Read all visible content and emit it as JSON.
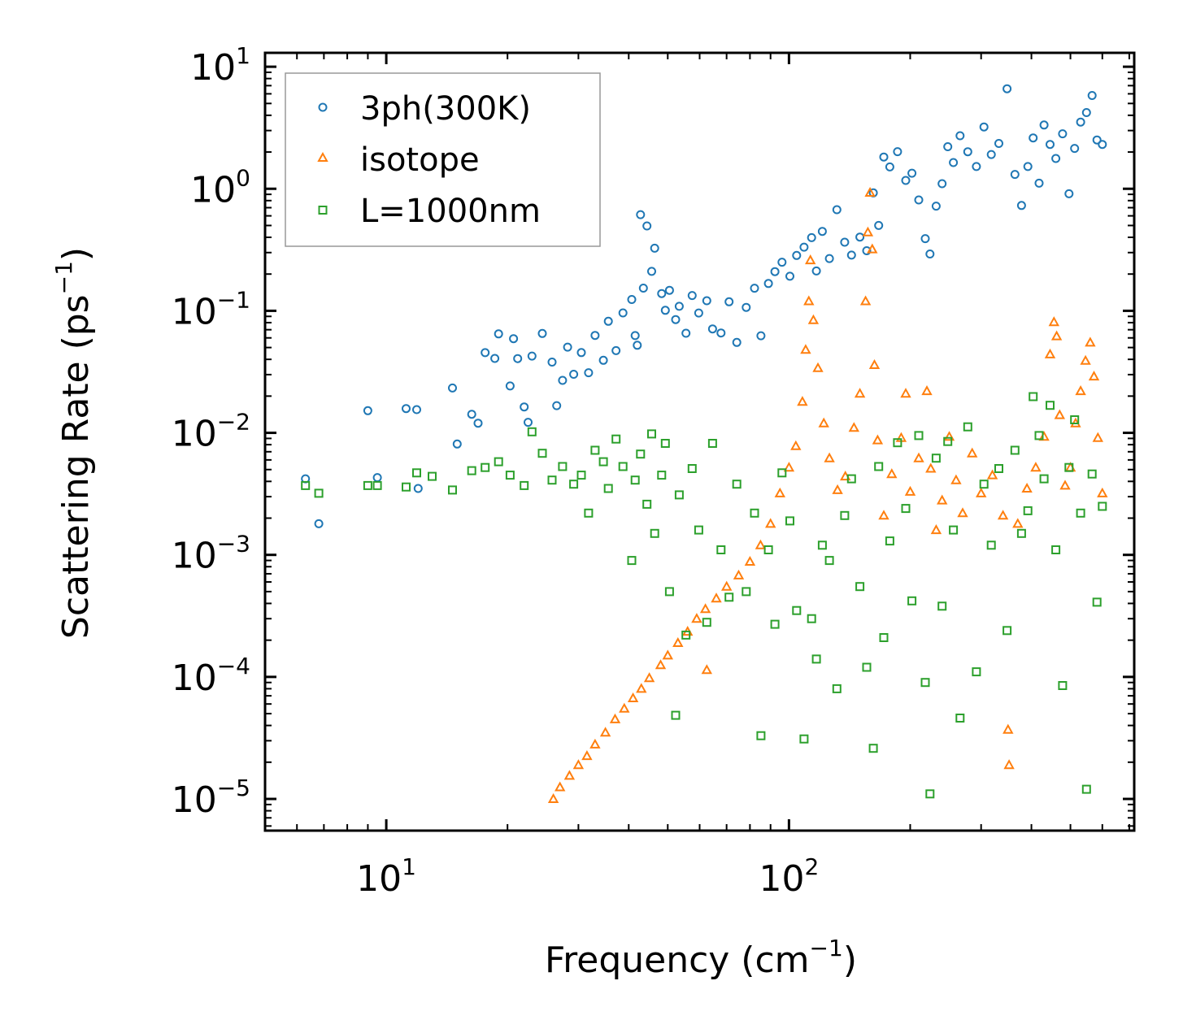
{
  "chart_data": {
    "type": "scatter",
    "xscale": "log",
    "yscale": "log",
    "xlim": [
      5,
      720
    ],
    "ylim": [
      5.5e-06,
      13
    ],
    "xlabel": "Frequency (cm",
    "xlabel_sup": "−1",
    "xlabel_end": ")",
    "ylabel": "Scattering Rate (ps",
    "ylabel_sup": "−1",
    "ylabel_end": ")",
    "x_ticks": [
      {
        "value": 10,
        "base": "10",
        "exp": "1"
      },
      {
        "value": 100,
        "base": "10",
        "exp": "2"
      }
    ],
    "y_ticks": [
      {
        "value": 10,
        "base": "10",
        "exp": "1"
      },
      {
        "value": 1,
        "base": "10",
        "exp": "0"
      },
      {
        "value": 0.1,
        "base": "10",
        "exp": "−1"
      },
      {
        "value": 0.01,
        "base": "10",
        "exp": "−2"
      },
      {
        "value": 0.001,
        "base": "10",
        "exp": "−3"
      },
      {
        "value": 0.0001,
        "base": "10",
        "exp": "−4"
      },
      {
        "value": 1e-05,
        "base": "10",
        "exp": "−5"
      }
    ],
    "legend_position": "top-left",
    "series": [
      {
        "name": "3ph(300K)",
        "marker": "circle",
        "color": "#1f77b4",
        "points": [
          [
            6.3,
            0.0042
          ],
          [
            6.8,
            0.0018
          ],
          [
            9.0,
            0.0152
          ],
          [
            9.5,
            0.0043
          ],
          [
            11.2,
            0.0158
          ],
          [
            11.9,
            0.0155
          ],
          [
            12.0,
            0.0035
          ],
          [
            14.6,
            0.0233
          ],
          [
            15.0,
            0.0081
          ],
          [
            16.3,
            0.0142
          ],
          [
            16.9,
            0.012
          ],
          [
            17.6,
            0.0454
          ],
          [
            18.6,
            0.0407
          ],
          [
            19.0,
            0.0647
          ],
          [
            20.3,
            0.0242
          ],
          [
            20.7,
            0.0591
          ],
          [
            21.2,
            0.0406
          ],
          [
            22.0,
            0.0163
          ],
          [
            22.5,
            0.0122
          ],
          [
            23.0,
            0.0426
          ],
          [
            24.4,
            0.0652
          ],
          [
            25.8,
            0.038
          ],
          [
            26.5,
            0.0167
          ],
          [
            27.4,
            0.0269
          ],
          [
            28.2,
            0.0504
          ],
          [
            29.2,
            0.0302
          ],
          [
            30.5,
            0.0455
          ],
          [
            31.8,
            0.0311
          ],
          [
            33.0,
            0.0628
          ],
          [
            34.6,
            0.0393
          ],
          [
            35.6,
            0.0821
          ],
          [
            37.2,
            0.0472
          ],
          [
            38.7,
            0.0961
          ],
          [
            40.7,
            0.1238
          ],
          [
            41.5,
            0.0627
          ],
          [
            42.0,
            0.0522
          ],
          [
            42.8,
            0.6135
          ],
          [
            43.5,
            0.1534
          ],
          [
            44.4,
            0.4962
          ],
          [
            45.6,
            0.2105
          ],
          [
            46.4,
            0.3259
          ],
          [
            48.3,
            0.1384
          ],
          [
            49.3,
            0.101
          ],
          [
            50.5,
            0.1472
          ],
          [
            52.3,
            0.0848
          ],
          [
            53.4,
            0.1089
          ],
          [
            55.5,
            0.0655
          ],
          [
            57.5,
            0.1334
          ],
          [
            59.7,
            0.096
          ],
          [
            62.5,
            0.1209
          ],
          [
            64.6,
            0.0711
          ],
          [
            67.8,
            0.0658
          ],
          [
            71.0,
            0.1185
          ],
          [
            74.2,
            0.0551
          ],
          [
            78.3,
            0.1067
          ],
          [
            82.1,
            0.1532
          ],
          [
            85.2,
            0.0625
          ],
          [
            88.9,
            0.1675
          ],
          [
            92.3,
            0.2093
          ],
          [
            96.1,
            0.2502
          ],
          [
            100.5,
            0.1918
          ],
          [
            104.5,
            0.2843
          ],
          [
            109.0,
            0.3321
          ],
          [
            113.8,
            0.3978
          ],
          [
            117.0,
            0.2121
          ],
          [
            121.0,
            0.4475
          ],
          [
            126.0,
            0.2683
          ],
          [
            131.5,
            0.6735
          ],
          [
            137.5,
            0.3651
          ],
          [
            143.0,
            0.2861
          ],
          [
            150.0,
            0.4018
          ],
          [
            156.0,
            0.3108
          ],
          [
            162.0,
            0.9254
          ],
          [
            167.0,
            0.5002
          ],
          [
            172.0,
            1.8211
          ],
          [
            178.0,
            1.5101
          ],
          [
            186.0,
            2.0131
          ],
          [
            195.0,
            1.1702
          ],
          [
            202.0,
            1.3413
          ],
          [
            210.0,
            0.8105
          ],
          [
            218.0,
            0.3904
          ],
          [
            224.0,
            0.2922
          ],
          [
            232.0,
            0.7213
          ],
          [
            240.0,
            1.1004
          ],
          [
            248.0,
            2.2112
          ],
          [
            256.0,
            1.6403
          ],
          [
            266.0,
            2.7205
          ],
          [
            278.0,
            2.0103
          ],
          [
            292.0,
            1.5202
          ],
          [
            305.0,
            3.2101
          ],
          [
            318.0,
            1.9103
          ],
          [
            332.0,
            2.3511
          ],
          [
            348.0,
            6.6002
          ],
          [
            364.0,
            1.3101
          ],
          [
            378.0,
            0.7301
          ],
          [
            392.0,
            1.5203
          ],
          [
            404.0,
            2.6101
          ],
          [
            418.0,
            1.1103
          ],
          [
            430.0,
            3.3302
          ],
          [
            445.0,
            2.3104
          ],
          [
            460.0,
            1.7701
          ],
          [
            478.0,
            2.8203
          ],
          [
            496.0,
            0.9101
          ],
          [
            512.0,
            2.1401
          ],
          [
            530.0,
            3.5202
          ],
          [
            548.0,
            4.2105
          ],
          [
            566.0,
            5.8101
          ],
          [
            582.0,
            2.5104
          ],
          [
            600.0,
            2.3101
          ]
        ]
      },
      {
        "name": "isotope",
        "marker": "triangle",
        "color": "#ff7f0e",
        "points": [
          [
            26.0,
            1e-05
          ],
          [
            27.0,
            1.25e-05
          ],
          [
            28.5,
            1.55e-05
          ],
          [
            30.0,
            1.9e-05
          ],
          [
            31.5,
            2.25e-05
          ],
          [
            33.0,
            2.8e-05
          ],
          [
            35.0,
            3.5e-05
          ],
          [
            37.0,
            4.5e-05
          ],
          [
            39.0,
            5.5e-05
          ],
          [
            41.0,
            6.7e-05
          ],
          [
            43.0,
            8e-05
          ],
          [
            45.0,
            9.8e-05
          ],
          [
            48.0,
            0.000125
          ],
          [
            50.0,
            0.00015
          ],
          [
            53.0,
            0.00019
          ],
          [
            56.0,
            0.000235
          ],
          [
            59.0,
            0.0003
          ],
          [
            62.0,
            0.00036
          ],
          [
            62.5,
            0.000114
          ],
          [
            66.0,
            0.00044
          ],
          [
            70.0,
            0.00055
          ],
          [
            75.0,
            0.00068
          ],
          [
            80.0,
            0.00088
          ],
          [
            85.0,
            0.0012
          ],
          [
            90.0,
            0.0018
          ],
          [
            95.0,
            0.0032
          ],
          [
            100.0,
            0.0052
          ],
          [
            104.0,
            0.0078
          ],
          [
            108.0,
            0.018
          ],
          [
            110.0,
            0.048
          ],
          [
            112.0,
            0.12
          ],
          [
            113.0,
            0.26
          ],
          [
            115.0,
            0.084
          ],
          [
            118.0,
            0.034
          ],
          [
            122.0,
            0.012
          ],
          [
            126.0,
            0.0062
          ],
          [
            132.0,
            0.0034
          ],
          [
            138.0,
            0.0044
          ],
          [
            145.0,
            0.011
          ],
          [
            150.0,
            0.021
          ],
          [
            155.0,
            0.12
          ],
          [
            157.0,
            0.44
          ],
          [
            159.0,
            0.93
          ],
          [
            161.0,
            0.32
          ],
          [
            163.0,
            0.036
          ],
          [
            166.0,
            0.0087
          ],
          [
            172.0,
            0.0021
          ],
          [
            180.0,
            0.0046
          ],
          [
            190.0,
            0.0091
          ],
          [
            195.0,
            0.021
          ],
          [
            200.0,
            0.0033
          ],
          [
            210.0,
            0.0062
          ],
          [
            220.0,
            0.022
          ],
          [
            225.0,
            0.0051
          ],
          [
            232.0,
            0.0016
          ],
          [
            240.0,
            0.0028
          ],
          [
            250.0,
            0.0093
          ],
          [
            260.0,
            0.0041
          ],
          [
            270.0,
            0.0022
          ],
          [
            285.0,
            0.0068
          ],
          [
            300.0,
            0.0032
          ],
          [
            320.0,
            0.0045
          ],
          [
            340.0,
            0.0021
          ],
          [
            350.0,
            3.7e-05
          ],
          [
            352.0,
            1.9e-05
          ],
          [
            370.0,
            0.0018
          ],
          [
            390.0,
            0.0035
          ],
          [
            410.0,
            0.0052
          ],
          [
            430.0,
            0.0093
          ],
          [
            445.0,
            0.044
          ],
          [
            455.0,
            0.081
          ],
          [
            462.0,
            0.062
          ],
          [
            470.0,
            0.014
          ],
          [
            485.0,
            0.0037
          ],
          [
            500.0,
            0.0052
          ],
          [
            515.0,
            0.012
          ],
          [
            530.0,
            0.022
          ],
          [
            545.0,
            0.039
          ],
          [
            560.0,
            0.055
          ],
          [
            572.0,
            0.029
          ],
          [
            585.0,
            0.0091
          ],
          [
            600.0,
            0.0032
          ]
        ]
      },
      {
        "name": "L=1000nm",
        "marker": "square",
        "color": "#2ca02c",
        "points": [
          [
            6.3,
            0.0037
          ],
          [
            6.8,
            0.0032
          ],
          [
            9.0,
            0.0037
          ],
          [
            9.5,
            0.0037
          ],
          [
            11.2,
            0.0036
          ],
          [
            11.9,
            0.0047
          ],
          [
            13.0,
            0.0044
          ],
          [
            14.6,
            0.0034
          ],
          [
            16.3,
            0.0049
          ],
          [
            17.6,
            0.0052
          ],
          [
            19.0,
            0.0058
          ],
          [
            20.3,
            0.0045
          ],
          [
            22.0,
            0.0037
          ],
          [
            23.0,
            0.0102
          ],
          [
            24.4,
            0.0068
          ],
          [
            25.8,
            0.0041
          ],
          [
            27.4,
            0.0053
          ],
          [
            29.2,
            0.0038
          ],
          [
            30.5,
            0.0045
          ],
          [
            31.8,
            0.0022
          ],
          [
            33.0,
            0.0072
          ],
          [
            34.6,
            0.0058
          ],
          [
            35.6,
            0.0035
          ],
          [
            37.2,
            0.0089
          ],
          [
            38.7,
            0.0053
          ],
          [
            40.7,
            0.0009
          ],
          [
            41.5,
            0.0041
          ],
          [
            42.8,
            0.0067
          ],
          [
            44.4,
            0.0026
          ],
          [
            45.6,
            0.0098
          ],
          [
            46.4,
            0.0015
          ],
          [
            48.3,
            0.0045
          ],
          [
            49.3,
            0.0082
          ],
          [
            50.5,
            0.0005
          ],
          [
            52.3,
            4.85e-05
          ],
          [
            53.4,
            0.0031
          ],
          [
            55.5,
            0.00022
          ],
          [
            57.5,
            0.0051
          ],
          [
            59.7,
            0.0016
          ],
          [
            62.5,
            0.00028
          ],
          [
            64.6,
            0.0082
          ],
          [
            67.8,
            0.0011
          ],
          [
            71.0,
            0.00045
          ],
          [
            74.2,
            0.0038
          ],
          [
            78.3,
            0.0005
          ],
          [
            82.1,
            0.0022
          ],
          [
            85.2,
            3.3e-05
          ],
          [
            88.9,
            0.0011
          ],
          [
            92.3,
            0.00027
          ],
          [
            96.1,
            0.0047
          ],
          [
            100.5,
            0.0019
          ],
          [
            104.5,
            0.00035
          ],
          [
            109.0,
            3.1e-05
          ],
          [
            113.8,
            0.0003
          ],
          [
            117.0,
            0.00014
          ],
          [
            121.0,
            0.0012
          ],
          [
            126.0,
            0.0009
          ],
          [
            131.5,
            8e-05
          ],
          [
            137.5,
            0.0021
          ],
          [
            143.0,
            0.0042
          ],
          [
            150.0,
            0.00055
          ],
          [
            156.0,
            0.00012
          ],
          [
            162.0,
            2.6e-05
          ],
          [
            167.0,
            0.0053
          ],
          [
            172.0,
            0.00021
          ],
          [
            178.0,
            0.0013
          ],
          [
            186.0,
            0.0083
          ],
          [
            195.0,
            0.0024
          ],
          [
            202.0,
            0.00042
          ],
          [
            210.0,
            0.0095
          ],
          [
            218.0,
            9e-05
          ],
          [
            224.0,
            1.1e-05
          ],
          [
            232.0,
            0.0062
          ],
          [
            240.0,
            0.00038
          ],
          [
            248.0,
            0.0085
          ],
          [
            256.0,
            0.0016
          ],
          [
            266.0,
            4.6e-05
          ],
          [
            278.0,
            0.0112
          ],
          [
            292.0,
            0.00011
          ],
          [
            305.0,
            0.0038
          ],
          [
            318.0,
            0.0012
          ],
          [
            332.0,
            0.0051
          ],
          [
            348.0,
            0.00024
          ],
          [
            364.0,
            0.0072
          ],
          [
            378.0,
            0.0015
          ],
          [
            392.0,
            0.0023
          ],
          [
            404.0,
            0.0198
          ],
          [
            418.0,
            0.0095
          ],
          [
            430.0,
            0.0042
          ],
          [
            445.0,
            0.0168
          ],
          [
            460.0,
            0.0011
          ],
          [
            478.0,
            8.5e-05
          ],
          [
            496.0,
            0.0052
          ],
          [
            512.0,
            0.0128
          ],
          [
            530.0,
            0.0022
          ],
          [
            548.0,
            1.2e-05
          ],
          [
            566.0,
            0.0046
          ],
          [
            582.0,
            0.00041
          ],
          [
            600.0,
            0.0025
          ]
        ]
      }
    ]
  }
}
